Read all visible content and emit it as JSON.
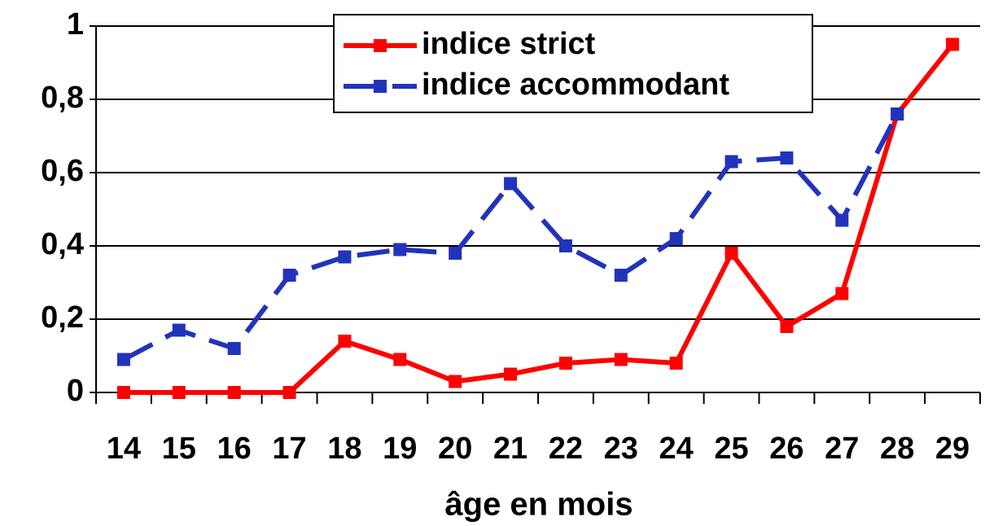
{
  "chart_data": {
    "type": "line",
    "xlabel": "âge en mois",
    "categories": [
      "14",
      "15",
      "16",
      "17",
      "18",
      "19",
      "20",
      "21",
      "22",
      "23",
      "24",
      "25",
      "26",
      "27",
      "28",
      "29"
    ],
    "series": [
      {
        "name": "indice strict",
        "color": "#ff0000",
        "dashed": false,
        "values": [
          0,
          0,
          0,
          0,
          0.14,
          0.09,
          0.03,
          0.05,
          0.08,
          0.09,
          0.08,
          0.38,
          0.18,
          0.27,
          0.76,
          0.95
        ]
      },
      {
        "name": "indice accommodant",
        "color": "#2233bb",
        "dashed": true,
        "values": [
          0.09,
          0.17,
          0.12,
          0.32,
          0.37,
          0.39,
          0.38,
          0.57,
          0.4,
          0.32,
          0.42,
          0.63,
          0.64,
          0.47,
          0.76,
          null
        ]
      }
    ],
    "ylim": [
      0,
      1
    ],
    "yticks": [
      0,
      {
        "value": 0.2,
        "label": "0,2"
      },
      {
        "value": 0.4,
        "label": "0,4"
      },
      {
        "value": 0.6,
        "label": "0,6"
      },
      {
        "value": 0.8,
        "label": "0,8"
      },
      1
    ],
    "grid": true
  }
}
